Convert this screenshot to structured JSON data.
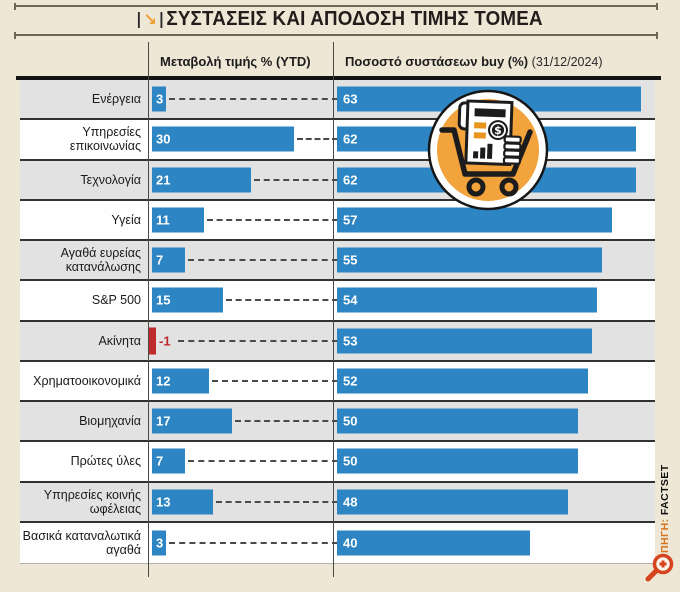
{
  "title": "ΣΥΣΤΑΣΕΙΣ ΚΑΙ ΑΠΟΔΟΣΗ ΤΙΜΗΣ ΤΟΜΕΑ",
  "title_icon_glyph": "↘",
  "header": {
    "ytd_label": "Μεταβολή τιμής % (YTD)",
    "buy_label": "Ποσοστό συστάσεων buy (%)",
    "buy_date": "(31/12/2024)"
  },
  "source": {
    "prefix": "ΠΗΓΗ:",
    "name": "FACTSET"
  },
  "icons": {
    "title_icon": "arrow-down-right-icon",
    "center_icon": "shopping-cart-report-icon",
    "corner_icon": "zoom-plus-icon"
  },
  "colors": {
    "bar_blue": "#2d85c3",
    "bar_negative_red": "#bf2a2d",
    "row_alt_gray": "#e2e2e2",
    "row_white": "#fefefe",
    "background_beige": "#eee7d6",
    "badge_orange": "#f2a33b",
    "title_arrow_orange": "#ef9f33",
    "source_orange": "#d8731f"
  },
  "chart_data": {
    "type": "bar",
    "orientation": "horizontal",
    "title": "ΣΥΣΤΑΣΕΙΣ ΚΑΙ ΑΠΟΔΟΣΗ ΤΙΜΗΣ ΤΟΜΕΑ",
    "categories": [
      "Ενέργεια",
      "Υπηρεσίες επικοινωνίας",
      "Τεχνολογία",
      "Υγεία",
      "Αγαθά ευρείας κατανάλωσης",
      "S&P 500",
      "Ακίνητα",
      "Χρηματοοικονομικά",
      "Βιομηχανία",
      "Πρώτες ύλες",
      "Υπηρεσίες κοινής ωφέλειας",
      "Βασικά καταναλωτικά αγαθά"
    ],
    "series": [
      {
        "name": "Μεταβολή τιμής % (YTD)",
        "values": [
          3,
          30,
          21,
          11,
          7,
          15,
          -1,
          12,
          17,
          7,
          13,
          3
        ]
      },
      {
        "name": "Ποσοστό συστάσεων buy (%) (31/12/2024)",
        "values": [
          63,
          62,
          62,
          57,
          55,
          54,
          53,
          52,
          50,
          50,
          48,
          40
        ]
      }
    ],
    "value_labels_shown": true,
    "legend_position": "column-headers",
    "grid": false
  }
}
